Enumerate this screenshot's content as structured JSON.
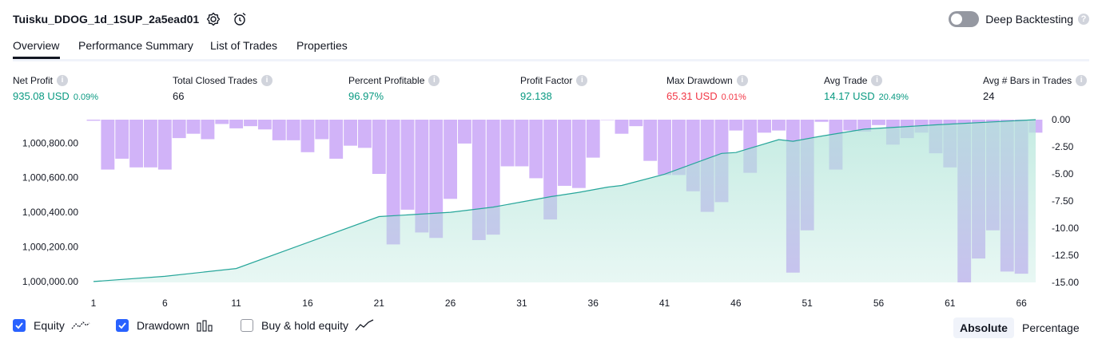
{
  "header": {
    "title": "Tuisku_DDOG_1d_1SUP_2a5ead01",
    "deep_backtesting_label": "Deep Backtesting",
    "help_glyph": "?"
  },
  "tabs": [
    "Overview",
    "Performance Summary",
    "List of Trades",
    "Properties"
  ],
  "stats": [
    {
      "label": "Net Profit",
      "value": "935.08 USD",
      "sub": "0.09%",
      "color": "green"
    },
    {
      "label": "Total Closed Trades",
      "value": "66",
      "sub": "",
      "color": "dark"
    },
    {
      "label": "Percent Profitable",
      "value": "96.97%",
      "sub": "",
      "color": "green"
    },
    {
      "label": "Profit Factor",
      "value": "92.138",
      "sub": "",
      "color": "green"
    },
    {
      "label": "Max Drawdown",
      "value": "65.31 USD",
      "sub": "0.01%",
      "color": "red"
    },
    {
      "label": "Avg Trade",
      "value": "14.17 USD",
      "sub": "20.49%",
      "color": "green"
    },
    {
      "label": "Avg # Bars in Trades",
      "value": "24",
      "sub": "",
      "color": "dark"
    }
  ],
  "info_glyph": "i",
  "chart_data": {
    "type": "area",
    "x_ticks": [
      "1",
      "6",
      "11",
      "16",
      "21",
      "26",
      "31",
      "36",
      "41",
      "46",
      "51",
      "56",
      "61",
      "66"
    ],
    "y_left_ticks": [
      "1,000,000.00",
      "1,000,200.00",
      "1,000,400.00",
      "1,000,600.00",
      "1,000,800.00"
    ],
    "y_left_tick_values": [
      1000000,
      1000200,
      1000400,
      1000600,
      1000800
    ],
    "y_right_ticks": [
      "0.00",
      "-2.50",
      "-5.00",
      "-7.50",
      "-10.00",
      "-12.50",
      "-15.00"
    ],
    "y_right_tick_values": [
      0,
      -2.5,
      -5,
      -7.5,
      -10,
      -12.5,
      -15
    ],
    "equity_ylim": [
      999995,
      1000935
    ],
    "drawdown_ylim": [
      -15,
      0
    ],
    "series": [
      {
        "name": "Equity",
        "color": "#26a69a",
        "fill": "#b2e5d9",
        "x": [
          1,
          6,
          11,
          21,
          23,
          26,
          29,
          31,
          33,
          35,
          37,
          38,
          41,
          45,
          46,
          49,
          50,
          52,
          55,
          60,
          67
        ],
        "values": [
          1000000,
          1000030,
          1000075,
          1000375,
          1000385,
          1000400,
          1000430,
          1000460,
          1000490,
          1000515,
          1000545,
          1000555,
          1000620,
          1000740,
          1000745,
          1000820,
          1000810,
          1000840,
          1000880,
          1000905,
          1000935
        ]
      },
      {
        "name": "Drawdown",
        "color": "#c9a6f7",
        "x": [
          1,
          2,
          3,
          4,
          5,
          6,
          7,
          8,
          9,
          10,
          11,
          12,
          13,
          14,
          15,
          16,
          17,
          18,
          19,
          20,
          21,
          22,
          23,
          24,
          25,
          26,
          27,
          28,
          29,
          30,
          31,
          32,
          33,
          34,
          35,
          36,
          37,
          38,
          39,
          40,
          41,
          42,
          43,
          44,
          45,
          46,
          47,
          48,
          49,
          50,
          51,
          52,
          53,
          54,
          55,
          56,
          57,
          58,
          59,
          60,
          61,
          62,
          63,
          64,
          65,
          66,
          67
        ],
        "values": [
          -0.1,
          -4.6,
          -3.6,
          -4.4,
          -4.4,
          -4.6,
          -1.7,
          -1.3,
          -1.8,
          -0.4,
          -0.8,
          -0.6,
          -0.9,
          -1.9,
          -1.9,
          -3.0,
          -1.8,
          -3.6,
          -2.4,
          -2.6,
          -5.0,
          -11.5,
          -8.3,
          -10.4,
          -10.9,
          -7.3,
          -2.2,
          -11.1,
          -10.6,
          -4.3,
          -4.3,
          -5.4,
          -9.2,
          -6.1,
          -6.3,
          -3.5,
          0,
          -1.3,
          -0.6,
          -3.8,
          -5.1,
          -5.1,
          -6.6,
          -8.5,
          -7.6,
          -1.0,
          -4.9,
          -1.2,
          -1.0,
          -14.1,
          -10.2,
          -0.2,
          -4.6,
          -1.0,
          -1.1,
          -0.5,
          -2.3,
          -1.7,
          -1.2,
          -3.1,
          -4.4,
          -15.0,
          -12.8,
          -10.2,
          -14.0,
          -14.2,
          -1.2
        ]
      }
    ]
  },
  "legend": {
    "equity": {
      "label": "Equity",
      "checked": true
    },
    "drawdown": {
      "label": "Drawdown",
      "checked": true
    },
    "buy_hold": {
      "label": "Buy & hold equity",
      "checked": false
    }
  },
  "modes": {
    "absolute": "Absolute",
    "percentage": "Percentage",
    "active": "absolute"
  },
  "colors": {
    "accent": "#2962ff",
    "profit": "#089981",
    "loss": "#f23645",
    "equity_line": "#26a69a",
    "drawdown_bar": "#c9a6f7"
  }
}
